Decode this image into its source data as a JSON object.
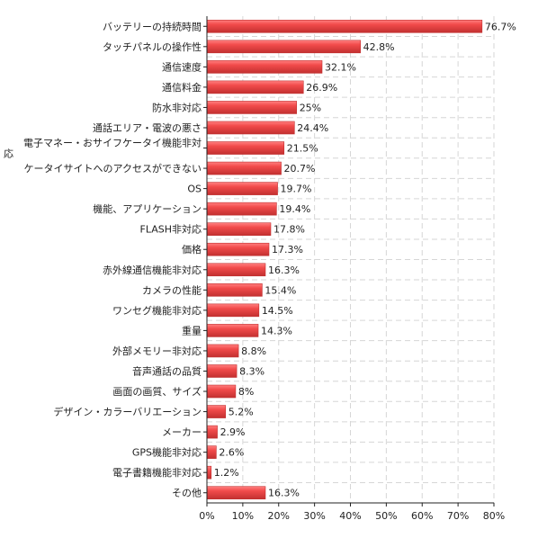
{
  "chart_data": {
    "type": "bar",
    "orientation": "horizontal",
    "categories": [
      "バッテリーの持続時間",
      "タッチパネルの操作性",
      "通信速度",
      "通信料金",
      "防水非対応",
      "通話エリア・電波の悪さ",
      "電子マネー・おサイフケータイ機能非対応",
      "ケータイサイトへのアクセスができない",
      "OS",
      "機能、アプリケーション",
      "FLASH非対応",
      "価格",
      "赤外線通信機能非対応",
      "カメラの性能",
      "ワンセグ機能非対応",
      "重量",
      "外部メモリー非対応",
      "音声通話の品質",
      "画面の画質、サイズ",
      "デザイン・カラーバリエーション",
      "メーカー",
      "GPS機能非対応",
      "電子書籍機能非対応",
      "その他"
    ],
    "values": [
      76.7,
      42.8,
      32.1,
      26.9,
      25,
      24.4,
      21.5,
      20.7,
      19.7,
      19.4,
      17.8,
      17.3,
      16.3,
      15.4,
      14.5,
      14.3,
      8.8,
      8.3,
      8,
      5.2,
      2.9,
      2.6,
      1.2,
      16.3
    ],
    "value_labels": [
      "76.7%",
      "42.8%",
      "32.1%",
      "26.9%",
      "25%",
      "24.4%",
      "21.5%",
      "20.7%",
      "19.7%",
      "19.4%",
      "17.8%",
      "17.3%",
      "16.3%",
      "15.4%",
      "14.5%",
      "14.3%",
      "8.8%",
      "8.3%",
      "8%",
      "5.2%",
      "2.9%",
      "2.6%",
      "1.2%",
      "16.3%"
    ],
    "xlim": [
      0,
      80
    ],
    "xticks": [
      "0%",
      "10%",
      "20%",
      "30%",
      "40%",
      "50%",
      "60%",
      "70%",
      "80%"
    ],
    "title": "",
    "xlabel": "",
    "ylabel": "",
    "grid": true,
    "colors": {
      "bar": "#f24b4b",
      "bar_top": "#ff8080",
      "bar_edge": "#c23030",
      "axis": "#222222",
      "grid": "#d6d6d6"
    }
  }
}
